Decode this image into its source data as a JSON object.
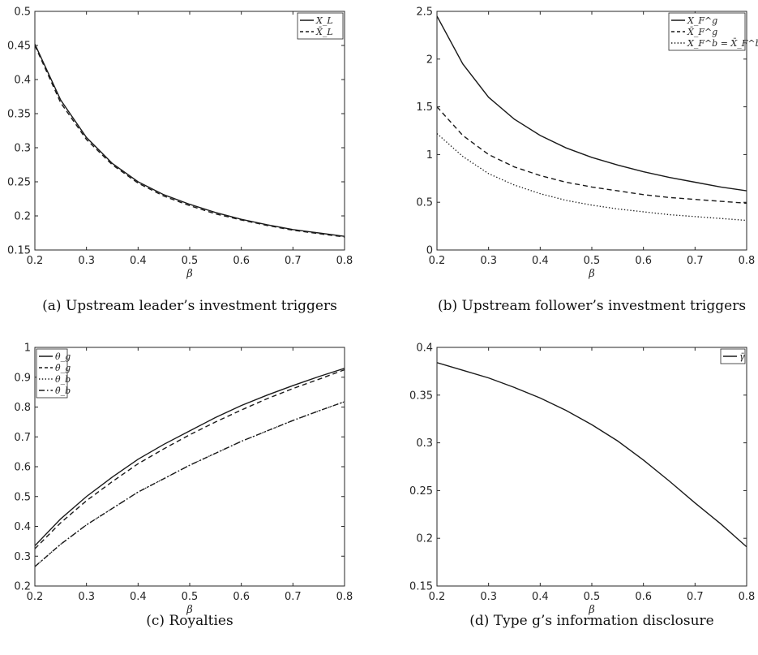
{
  "chart_data": [
    {
      "type": "line",
      "title": "",
      "caption": "(a) Upstream leader’s investment triggers",
      "xlabel": "β",
      "ylabel": "",
      "xlim": [
        0.2,
        0.8
      ],
      "ylim": [
        0.15,
        0.5
      ],
      "xticks": [
        0.2,
        0.3,
        0.4,
        0.5,
        0.6,
        0.7,
        0.8
      ],
      "xtick_labels": [
        "0.2",
        "0.3",
        "0.4",
        "0.5",
        "0.6",
        "0.7",
        "0.8"
      ],
      "yticks": [
        0.15,
        0.2,
        0.25,
        0.3,
        0.35,
        0.4,
        0.45,
        0.5
      ],
      "ytick_labels": [
        "0.15",
        "0.2",
        "0.25",
        "0.3",
        "0.35",
        "0.4",
        "0.45",
        "0.5"
      ],
      "grid": false,
      "legend": "top-right",
      "x": [
        0.2,
        0.25,
        0.3,
        0.35,
        0.4,
        0.45,
        0.5,
        0.55,
        0.6,
        0.65,
        0.7,
        0.75,
        0.8
      ],
      "series": [
        {
          "name": "X_L",
          "style": "solid",
          "values": [
            0.452,
            0.37,
            0.315,
            0.277,
            0.25,
            0.231,
            0.217,
            0.205,
            0.195,
            0.187,
            0.18,
            0.175,
            0.17
          ]
        },
        {
          "name": "X̄_L",
          "style": "dashed",
          "values": [
            0.45,
            0.366,
            0.312,
            0.275,
            0.248,
            0.229,
            0.215,
            0.203,
            0.194,
            0.186,
            0.179,
            0.174,
            0.169
          ]
        }
      ]
    },
    {
      "type": "line",
      "title": "",
      "caption": "(b) Upstream follower’s investment triggers",
      "xlabel": "β",
      "ylabel": "",
      "xlim": [
        0.2,
        0.8
      ],
      "ylim": [
        0,
        2.5
      ],
      "xticks": [
        0.2,
        0.3,
        0.4,
        0.5,
        0.6,
        0.7,
        0.8
      ],
      "xtick_labels": [
        "0.2",
        "0.3",
        "0.4",
        "0.5",
        "0.6",
        "0.7",
        "0.8"
      ],
      "yticks": [
        0,
        0.5,
        1,
        1.5,
        2,
        2.5
      ],
      "ytick_labels": [
        "0",
        "0.5",
        "1",
        "1.5",
        "2",
        "2.5"
      ],
      "grid": false,
      "legend": "top-right",
      "x": [
        0.2,
        0.25,
        0.3,
        0.35,
        0.4,
        0.45,
        0.5,
        0.55,
        0.6,
        0.65,
        0.7,
        0.75,
        0.8
      ],
      "series": [
        {
          "name": "X_F^g",
          "style": "solid",
          "values": [
            2.45,
            1.95,
            1.6,
            1.37,
            1.2,
            1.07,
            0.97,
            0.89,
            0.82,
            0.76,
            0.71,
            0.66,
            0.62
          ]
        },
        {
          "name": "X̄_F^g",
          "style": "dashed",
          "values": [
            1.5,
            1.2,
            1.0,
            0.87,
            0.78,
            0.71,
            0.66,
            0.62,
            0.58,
            0.55,
            0.53,
            0.51,
            0.49
          ]
        },
        {
          "name": "X_F^b = X̄_F^b",
          "style": "dotted",
          "values": [
            1.22,
            0.98,
            0.8,
            0.68,
            0.59,
            0.52,
            0.47,
            0.43,
            0.4,
            0.37,
            0.35,
            0.33,
            0.31
          ]
        }
      ]
    },
    {
      "type": "line",
      "title": "",
      "caption": "(c) Royalties",
      "xlabel": "β",
      "ylabel": "",
      "xlim": [
        0.2,
        0.8
      ],
      "ylim": [
        0.2,
        1
      ],
      "xticks": [
        0.2,
        0.3,
        0.4,
        0.5,
        0.6,
        0.7,
        0.8
      ],
      "xtick_labels": [
        "0.2",
        "0.3",
        "0.4",
        "0.5",
        "0.6",
        "0.7",
        "0.8"
      ],
      "yticks": [
        0.2,
        0.3,
        0.4,
        0.5,
        0.6,
        0.7,
        0.8,
        0.9,
        1
      ],
      "ytick_labels": [
        "0.2",
        "0.3",
        "0.4",
        "0.5",
        "0.6",
        "0.7",
        "0.8",
        "0.9",
        "1"
      ],
      "grid": false,
      "legend": "top-left",
      "x": [
        0.2,
        0.25,
        0.3,
        0.35,
        0.4,
        0.45,
        0.5,
        0.55,
        0.6,
        0.65,
        0.7,
        0.75,
        0.8
      ],
      "series": [
        {
          "name": "θ_g",
          "style": "solid",
          "values": [
            0.335,
            0.425,
            0.5,
            0.565,
            0.625,
            0.675,
            0.72,
            0.765,
            0.805,
            0.84,
            0.872,
            0.902,
            0.93
          ]
        },
        {
          "name": "θ̄_g",
          "style": "dashed",
          "values": [
            0.325,
            0.412,
            0.486,
            0.55,
            0.61,
            0.66,
            0.707,
            0.75,
            0.79,
            0.828,
            0.862,
            0.893,
            0.925
          ]
        },
        {
          "name": "θ_b",
          "style": "dotted",
          "values": [
            0.265,
            0.34,
            0.405,
            0.46,
            0.515,
            0.56,
            0.605,
            0.645,
            0.685,
            0.72,
            0.755,
            0.787,
            0.818
          ]
        },
        {
          "name": "θ̄_b",
          "style": "dashdot",
          "values": [
            0.265,
            0.34,
            0.405,
            0.46,
            0.515,
            0.56,
            0.605,
            0.645,
            0.685,
            0.72,
            0.755,
            0.787,
            0.818
          ]
        }
      ]
    },
    {
      "type": "line",
      "title": "",
      "caption": "(d) Type g’s information disclosure",
      "xlabel": "β",
      "ylabel": "",
      "xlim": [
        0.2,
        0.8
      ],
      "ylim": [
        0.15,
        0.4
      ],
      "xticks": [
        0.2,
        0.3,
        0.4,
        0.5,
        0.6,
        0.7,
        0.8
      ],
      "xtick_labels": [
        "0.2",
        "0.3",
        "0.4",
        "0.5",
        "0.6",
        "0.7",
        "0.8"
      ],
      "yticks": [
        0.15,
        0.2,
        0.25,
        0.3,
        0.35,
        0.4
      ],
      "ytick_labels": [
        "0.15",
        "0.2",
        "0.25",
        "0.3",
        "0.35",
        "0.4"
      ],
      "grid": false,
      "legend": "top-right",
      "x": [
        0.2,
        0.25,
        0.3,
        0.35,
        0.4,
        0.45,
        0.5,
        0.55,
        0.6,
        0.65,
        0.7,
        0.75,
        0.8
      ],
      "series": [
        {
          "name": "γ̄",
          "style": "solid",
          "values": [
            0.384,
            0.376,
            0.368,
            0.358,
            0.347,
            0.334,
            0.319,
            0.302,
            0.282,
            0.26,
            0.237,
            0.215,
            0.191
          ]
        }
      ]
    }
  ]
}
